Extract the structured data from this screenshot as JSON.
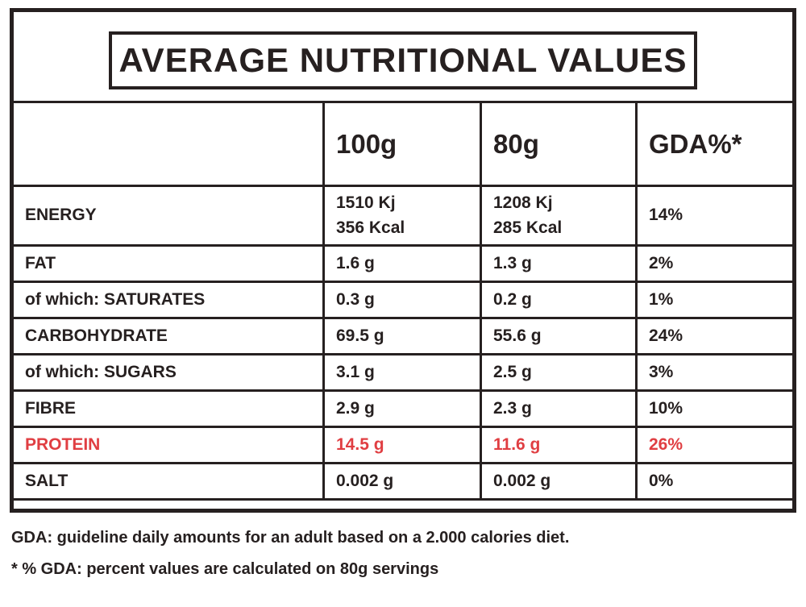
{
  "title": "AVERAGE NUTRITIONAL VALUES",
  "colors": {
    "ink": "#262020",
    "red": "#e03e42",
    "paper": "#ffffff"
  },
  "table": {
    "headers": {
      "label": "",
      "col_100": "100g",
      "col_80": "80g",
      "col_gda": "GDA%*"
    },
    "rows": [
      {
        "label": "ENERGY",
        "per100": "1510 Kj\n356 Kcal",
        "per80": "1208 Kj\n285 Kcal",
        "gda": "14%"
      },
      {
        "label": "FAT",
        "per100": "1.6 g",
        "per80": "1.3 g",
        "gda": "2%"
      },
      {
        "label": "of which: SATURATES",
        "per100": "0.3 g",
        "per80": "0.2 g",
        "gda": "1%"
      },
      {
        "label": "CARBOHYDRATE",
        "per100": "69.5 g",
        "per80": "55.6 g",
        "gda": "24%"
      },
      {
        "label": "of which: SUGARS",
        "per100": "3.1 g",
        "per80": "2.5 g",
        "gda": "3%"
      },
      {
        "label": "FIBRE",
        "per100": "2.9 g",
        "per80": "2.3 g",
        "gda": "10%"
      },
      {
        "label": "PROTEIN",
        "per100": "14.5 g",
        "per80": "11.6 g",
        "gda": "26%"
      },
      {
        "label": "SALT",
        "per100": "0.002 g",
        "per80": "0.002 g",
        "gda": "0%"
      }
    ]
  },
  "footnotes": [
    "GDA: guideline daily amounts for an adult based on a 2.000 calories diet.",
    "* % GDA: percent values are calculated on 80g servings"
  ]
}
